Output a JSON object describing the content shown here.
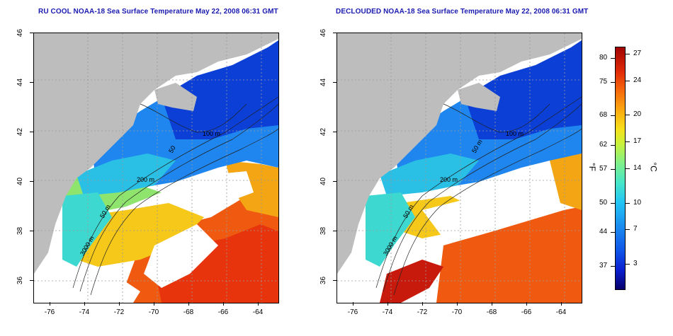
{
  "titles": {
    "left": "RU COOL NOAA-18 Sea Surface Temperature May 22, 2008 06:31 GMT",
    "right": "DECLOUDED NOAA-18 Sea Surface Temperature May 22, 2008 06:31 GMT"
  },
  "axes": {
    "x_ticks": [
      "-76",
      "-74",
      "-72",
      "-70",
      "-68",
      "-66",
      "-64"
    ],
    "y_ticks": [
      "46",
      "44",
      "42",
      "40",
      "38",
      "36"
    ]
  },
  "contours": {
    "left": [
      "100 m",
      "50",
      "200 m",
      "50 m",
      "3000 m"
    ],
    "right": [
      "100 m",
      "50 m",
      "200 m",
      "50 m",
      "3000 m"
    ]
  },
  "colorbar": {
    "fahrenheit_ticks": [
      "80",
      "75",
      "68",
      "62",
      "57",
      "50",
      "44",
      "37"
    ],
    "celsius_ticks": [
      "27",
      "24",
      "20",
      "17",
      "14",
      "10",
      "7",
      "3"
    ],
    "fahrenheit_unit": "°F",
    "celsius_unit": "°C"
  },
  "colors": {
    "title": "#1a1ab0",
    "land": "#bdbdbd",
    "cloud": "#ffffff"
  }
}
